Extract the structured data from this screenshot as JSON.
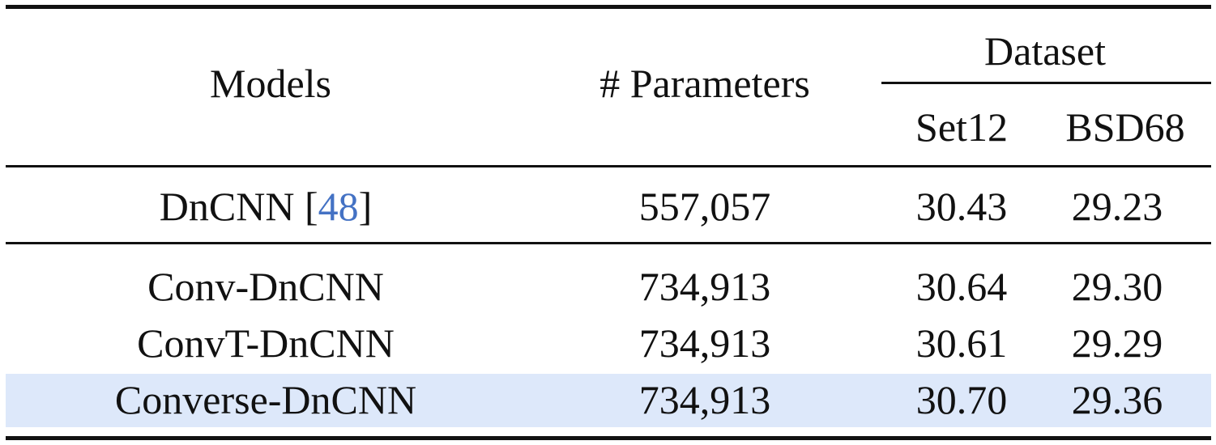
{
  "header": {
    "models": "Models",
    "parameters": "# Parameters",
    "dataset": "Dataset",
    "set12": "Set12",
    "bsd68": "BSD68"
  },
  "rows": [
    {
      "model": "DnCNN",
      "cite": "48",
      "params": "557,057",
      "set12": "30.43",
      "bsd68": "29.23"
    },
    {
      "model": "Conv-DnCNN",
      "params": "734,913",
      "set12": "30.64",
      "bsd68": "29.30"
    },
    {
      "model": "ConvT-DnCNN",
      "params": "734,913",
      "set12": "30.61",
      "bsd68": "29.29"
    },
    {
      "model": "Converse-DnCNN",
      "params": "734,913",
      "set12": "30.70",
      "bsd68": "29.36",
      "highlighted": true
    }
  ],
  "colors": {
    "text": "#111111",
    "highlight": "#dde8fa",
    "citation": "#4472c4"
  }
}
